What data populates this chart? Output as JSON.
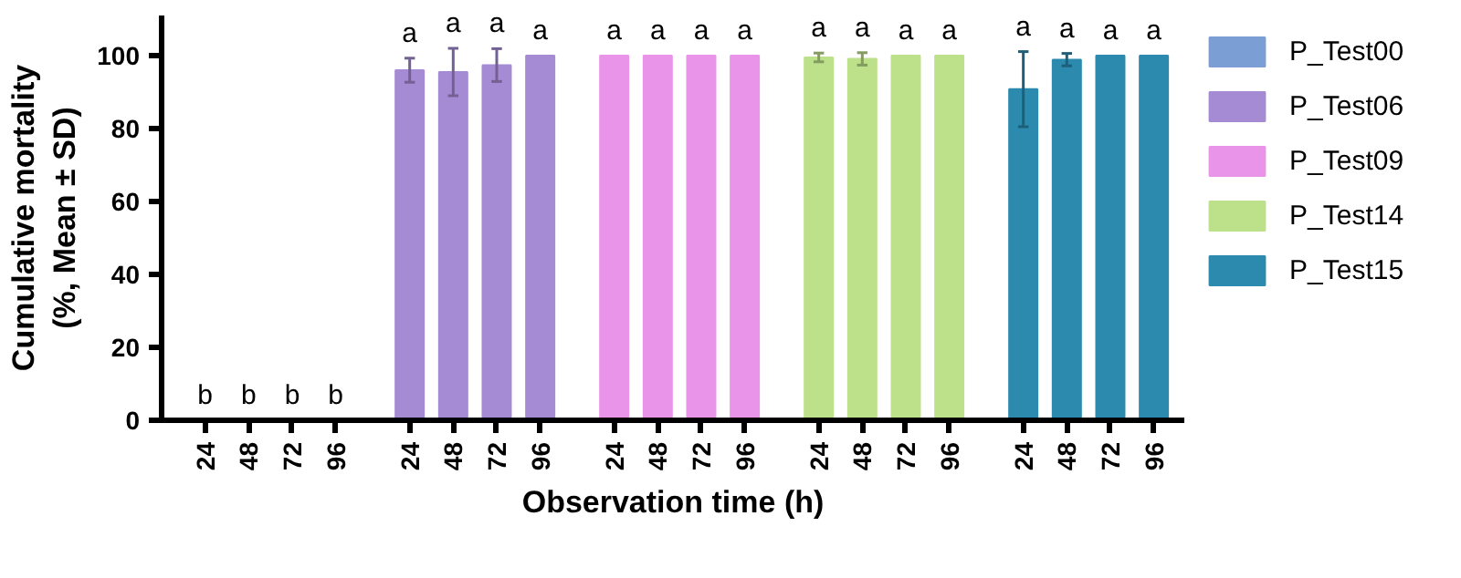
{
  "chart_data": {
    "type": "bar",
    "xlabel": "Observation time (h)",
    "ylabel": "Cumulative mortality\n(%, Mean ± SD)",
    "categories": [
      "24",
      "48",
      "72",
      "96",
      "24",
      "48",
      "72",
      "96",
      "24",
      "48",
      "72",
      "96",
      "24",
      "48",
      "72",
      "96",
      "24",
      "48",
      "72",
      "96"
    ],
    "series": [
      {
        "name": "P_Test00",
        "color": "#7b9fd4",
        "values": [
          0,
          0,
          0,
          0,
          null,
          null,
          null,
          null,
          null,
          null,
          null,
          null,
          null,
          null,
          null,
          null,
          null,
          null,
          null,
          null
        ],
        "value_labels": [
          "b",
          "b",
          "b",
          "b",
          null,
          null,
          null,
          null,
          null,
          null,
          null,
          null,
          null,
          null,
          null,
          null,
          null,
          null,
          null,
          null
        ]
      },
      {
        "name": "P_Test06",
        "color": "#a58bd3",
        "values": [
          null,
          null,
          null,
          null,
          96,
          95.5,
          97.4,
          100,
          null,
          null,
          null,
          null,
          null,
          null,
          null,
          null,
          null,
          null,
          null,
          null
        ],
        "errors": [
          null,
          null,
          null,
          null,
          3.3,
          6.5,
          4.5,
          null,
          null,
          null,
          null,
          null,
          null,
          null,
          null,
          null,
          null,
          null,
          null,
          null
        ],
        "value_labels": [
          null,
          null,
          null,
          null,
          "a",
          "a",
          "a",
          "a",
          null,
          null,
          null,
          null,
          null,
          null,
          null,
          null,
          null,
          null,
          null,
          null
        ]
      },
      {
        "name": "P_Test09",
        "color": "#e994e8",
        "values": [
          null,
          null,
          null,
          null,
          null,
          null,
          null,
          null,
          100,
          100,
          100,
          100,
          null,
          null,
          null,
          null,
          null,
          null,
          null,
          null
        ],
        "value_labels": [
          null,
          null,
          null,
          null,
          null,
          null,
          null,
          null,
          "a",
          "a",
          "a",
          "a",
          null,
          null,
          null,
          null,
          null,
          null,
          null,
          null
        ]
      },
      {
        "name": "P_Test14",
        "color": "#bde08a",
        "values": [
          null,
          null,
          null,
          null,
          null,
          null,
          null,
          null,
          null,
          null,
          null,
          null,
          99.5,
          99.1,
          100,
          100,
          null,
          null,
          null,
          null
        ],
        "errors": [
          null,
          null,
          null,
          null,
          null,
          null,
          null,
          null,
          null,
          null,
          null,
          null,
          1.2,
          1.7,
          null,
          null,
          null,
          null,
          null,
          null
        ],
        "value_labels": [
          null,
          null,
          null,
          null,
          null,
          null,
          null,
          null,
          null,
          null,
          null,
          null,
          "a",
          "a",
          "a",
          "a",
          null,
          null,
          null,
          null
        ]
      },
      {
        "name": "P_Test15",
        "color": "#2b8aad",
        "values": [
          null,
          null,
          null,
          null,
          null,
          null,
          null,
          null,
          null,
          null,
          null,
          null,
          null,
          null,
          null,
          null,
          90.8,
          98.9,
          100,
          100
        ],
        "errors": [
          null,
          null,
          null,
          null,
          null,
          null,
          null,
          null,
          null,
          null,
          null,
          null,
          null,
          null,
          null,
          null,
          10.3,
          1.7,
          null,
          null
        ],
        "value_labels": [
          null,
          null,
          null,
          null,
          null,
          null,
          null,
          null,
          null,
          null,
          null,
          null,
          null,
          null,
          null,
          null,
          "a",
          "a",
          "a",
          "a"
        ]
      }
    ],
    "ylim": [
      0,
      111
    ],
    "yticks": [
      0,
      20,
      40,
      60,
      80,
      100
    ],
    "legend": "right"
  }
}
